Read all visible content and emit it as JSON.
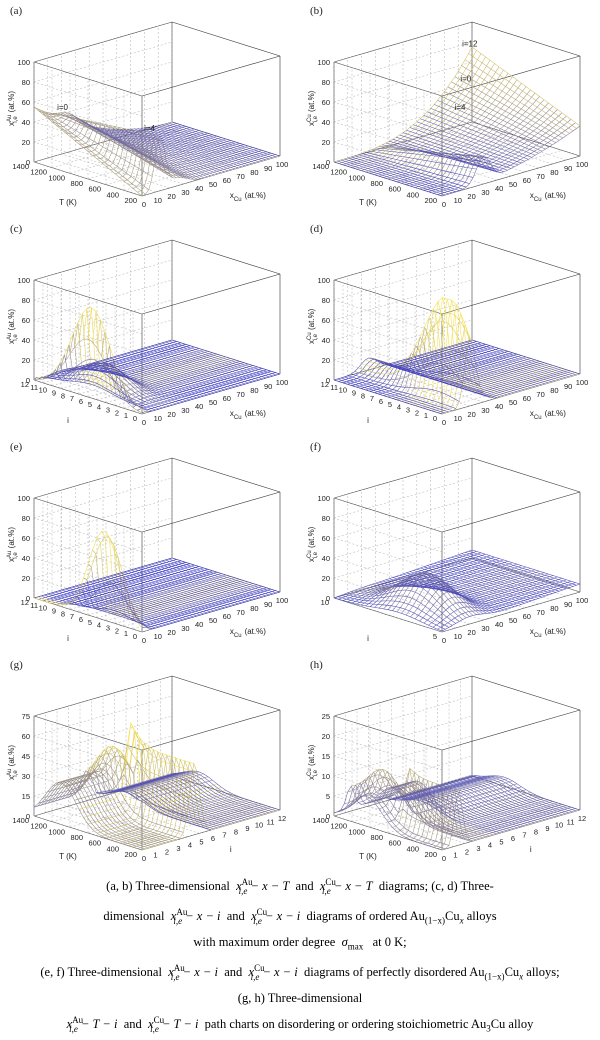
{
  "colors": {
    "axis": "#333333",
    "grid": "#9a9a9a",
    "mesh_low": "#3b3bc8",
    "mesh_high": "#f4e04a"
  },
  "chart_data": [
    {
      "panel": "(a)",
      "type": "surface3d",
      "zlabel_main": "x",
      "zlabel_sup": "Au",
      "zlabel_sub": "i,e",
      "zlabel_unit": "(at.%)",
      "xlabel_main": "x",
      "xlabel_sub": "Cu",
      "xlabel_unit": "(at.%)",
      "ylabel": "T  (K)",
      "zticks": [
        "0",
        "20",
        "40",
        "60",
        "80",
        "100"
      ],
      "xticks": [
        "0",
        "10",
        "20",
        "30",
        "40",
        "50",
        "60",
        "70",
        "80",
        "90",
        "100"
      ],
      "yticks": [
        "200",
        "400",
        "600",
        "800",
        "1000",
        "1200",
        "1400"
      ],
      "annotations": [
        "i=0",
        "i=4"
      ]
    },
    {
      "panel": "(b)",
      "type": "surface3d",
      "zlabel_main": "x",
      "zlabel_sup": "Cu",
      "zlabel_sub": "i,e",
      "zlabel_unit": "(at.%)",
      "xlabel_main": "x",
      "xlabel_sub": "Cu",
      "xlabel_unit": "(at.%)",
      "ylabel": "T  (K)",
      "zticks": [
        "0",
        "20",
        "40",
        "60",
        "80",
        "100"
      ],
      "xticks": [
        "0",
        "10",
        "20",
        "30",
        "40",
        "50",
        "60",
        "70",
        "80",
        "90",
        "100"
      ],
      "yticks": [
        "200",
        "400",
        "600",
        "800",
        "1000",
        "1200",
        "1400"
      ],
      "annotations": [
        "i=12",
        "i=0",
        "i=4"
      ]
    },
    {
      "panel": "(c)",
      "type": "surface3d",
      "zlabel_main": "x",
      "zlabel_sup": "Au",
      "zlabel_sub": "i,e",
      "zlabel_unit": "(at.%)",
      "xlabel_main": "x",
      "xlabel_sub": "Cu",
      "xlabel_unit": "(at.%)",
      "ylabel": "i",
      "zticks": [
        "0",
        "20",
        "40",
        "60",
        "80",
        "100"
      ],
      "xticks": [
        "0",
        "10",
        "20",
        "30",
        "40",
        "50",
        "60",
        "70",
        "80",
        "90",
        "100"
      ],
      "yticks": [
        "0",
        "1",
        "2",
        "3",
        "4",
        "5",
        "6",
        "7",
        "8",
        "9",
        "10",
        "11",
        "12"
      ],
      "annotations": []
    },
    {
      "panel": "(d)",
      "type": "surface3d",
      "zlabel_main": "x",
      "zlabel_sup": "Cu",
      "zlabel_sub": "i,e",
      "zlabel_unit": "(at.%)",
      "xlabel_main": "x",
      "xlabel_sub": "Cu",
      "xlabel_unit": "(at.%)",
      "ylabel": "i",
      "zticks": [
        "0",
        "20",
        "40",
        "60",
        "80",
        "100"
      ],
      "xticks": [
        "0",
        "10",
        "20",
        "30",
        "40",
        "50",
        "60",
        "70",
        "80",
        "90",
        "100"
      ],
      "yticks": [
        "0",
        "1",
        "2",
        "3",
        "4",
        "5",
        "6",
        "7",
        "8",
        "9",
        "10",
        "11",
        "12"
      ],
      "annotations": []
    },
    {
      "panel": "(e)",
      "type": "surface3d",
      "zlabel_main": "x",
      "zlabel_sup": "Au",
      "zlabel_sub": "i,e",
      "zlabel_unit": "(at.%)",
      "xlabel_main": "x",
      "xlabel_sub": "Cu",
      "xlabel_unit": "(at.%)",
      "ylabel": "i",
      "zticks": [
        "0",
        "20",
        "40",
        "60",
        "80",
        "100"
      ],
      "xticks": [
        "0",
        "10",
        "20",
        "30",
        "40",
        "50",
        "60",
        "70",
        "80",
        "90",
        "100"
      ],
      "yticks": [
        "0",
        "1",
        "2",
        "3",
        "4",
        "5",
        "6",
        "7",
        "8",
        "9",
        "10",
        "11",
        "12"
      ],
      "annotations": []
    },
    {
      "panel": "(f)",
      "type": "surface3d",
      "zlabel_main": "x",
      "zlabel_sup": "Cu",
      "zlabel_sub": "i,e",
      "zlabel_unit": "(at.%)",
      "xlabel_main": "x",
      "xlabel_sub": "Cu",
      "xlabel_unit": "(at.%)",
      "ylabel": "i",
      "zticks": [
        "0",
        "20",
        "40",
        "60",
        "80",
        "100"
      ],
      "xticks": [
        "0",
        "10",
        "20",
        "30",
        "40",
        "50",
        "60",
        "70",
        "80",
        "90",
        "100"
      ],
      "yticks": [
        "5",
        "10"
      ],
      "annotations": []
    },
    {
      "panel": "(g)",
      "type": "surface3d",
      "zlabel_main": "x",
      "zlabel_sup": "Au",
      "zlabel_sub": "i,e",
      "zlabel_unit": "(at.%)",
      "xlabel_main": "i",
      "xlabel_sub": "",
      "xlabel_unit": "",
      "ylabel": "T  (K)",
      "zticks": [
        "0",
        "15",
        "30",
        "45",
        "60",
        "75"
      ],
      "xticks": [
        "0",
        "1",
        "2",
        "3",
        "4",
        "5",
        "6",
        "7",
        "8",
        "9",
        "10",
        "11",
        "12"
      ],
      "yticks": [
        "200",
        "400",
        "600",
        "800",
        "1000",
        "1200",
        "1400"
      ],
      "annotations": []
    },
    {
      "panel": "(h)",
      "type": "surface3d",
      "zlabel_main": "x",
      "zlabel_sup": "Cu",
      "zlabel_sub": "i,e",
      "zlabel_unit": "(at.%)",
      "xlabel_main": "i",
      "xlabel_sub": "",
      "xlabel_unit": "",
      "ylabel": "T  (K)",
      "zticks": [
        "0",
        "5",
        "10",
        "15",
        "20",
        "25"
      ],
      "xticks": [
        "0",
        "1",
        "2",
        "3",
        "4",
        "5",
        "6",
        "7",
        "8",
        "9",
        "10",
        "11",
        "12"
      ],
      "yticks": [
        "200",
        "400",
        "600",
        "800",
        "1000",
        "1200",
        "1400"
      ],
      "annotations": []
    }
  ],
  "caption": {
    "l1_pre": "(a,  b)  Three-dimensional",
    "l1_m1": "x",
    "l1_m1_sup": "Au",
    "l1_m1_sub": "i,e",
    "l1_m1_rest": " − x − T",
    "l1_and": "and",
    "l1_m2": "x",
    "l1_m2_sup": "Cu",
    "l1_m2_sub": "i,e",
    "l1_m2_rest": " − x − T",
    "l1_post": "diagrams;  (c,  d)  Three-",
    "l2_pre": "dimensional",
    "l2_m1_rest": " − x − i",
    "l2_and": "and",
    "l2_m2_rest": " − x − i",
    "l2_post": "diagrams of ordered Au",
    "l2_sub1": "(1−x)",
    "l2_cu": "Cu",
    "l2_subx": "x",
    "l2_end": " alloys",
    "l3": "with  maximum  order  degree",
    "l3_sigma": "σ",
    "l3_sigma_sub": "max",
    "l3_end": "at  0  K;",
    "l4_pre": "(e, f) Three-dimensional",
    "l4_post": "diagrams of perfectly disordered Au",
    "l4_end": " alloys;",
    "l5": "(g, h) Three-dimensional",
    "l6_m1_rest": " − T − i",
    "l6_m2_rest": " − T − i",
    "l6_post": "path charts on disordering or ordering stoichiometric Au",
    "l6_sub3": "3",
    "l6_end": "Cu alloy"
  }
}
